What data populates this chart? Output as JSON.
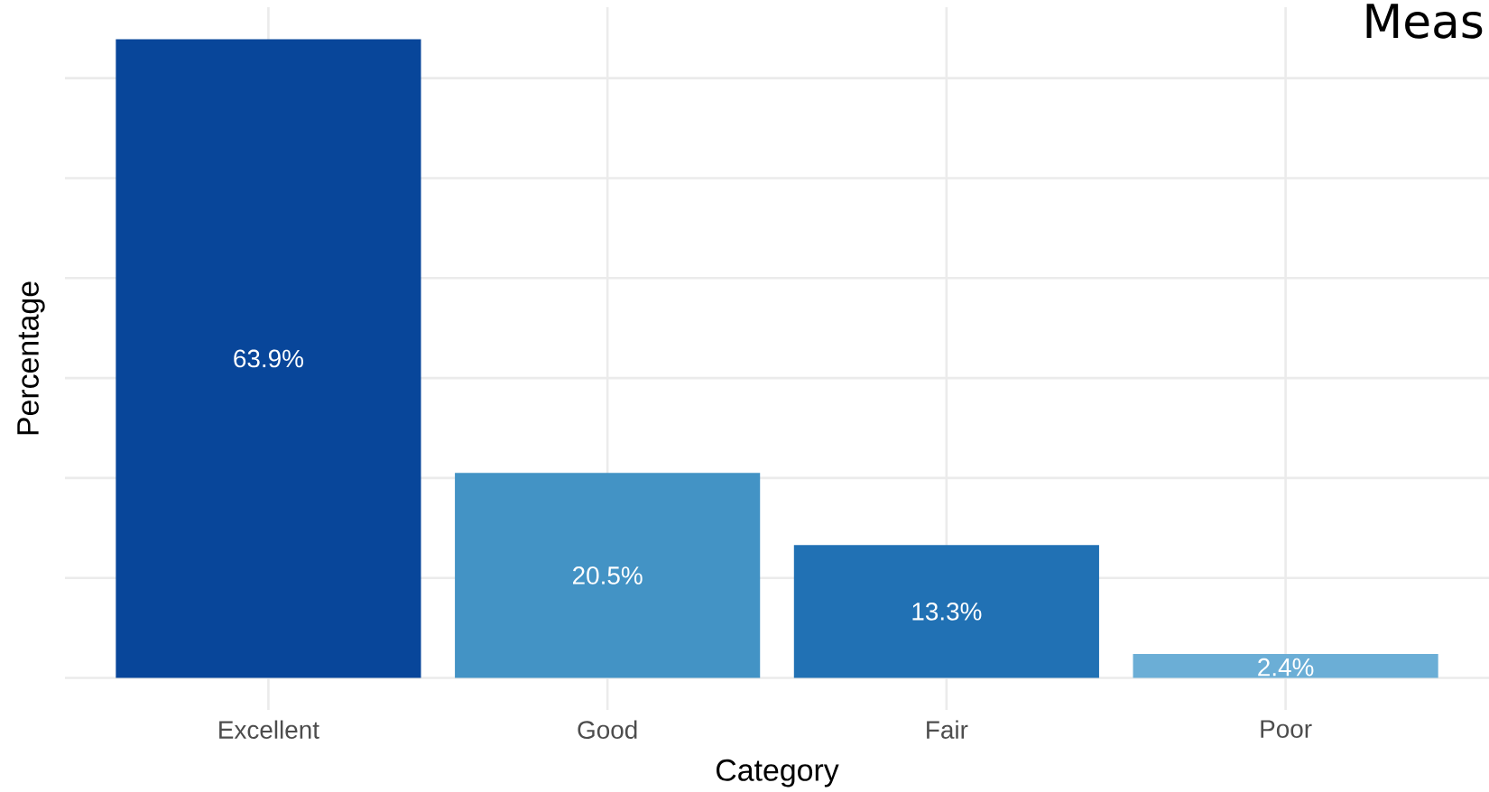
{
  "chart_data": {
    "type": "bar",
    "title": "Meas",
    "xlabel": "Category",
    "ylabel": "Percentage",
    "categories": [
      "Excellent",
      "Good",
      "Fair",
      "Poor"
    ],
    "values": [
      63.9,
      20.5,
      13.3,
      2.4
    ],
    "colors": [
      "#08469a",
      "#4393c5",
      "#2171b4",
      "#6baed6"
    ],
    "value_labels": [
      "63.9%",
      "20.5%",
      "13.3%",
      "2.4%"
    ],
    "ylim": [
      -3.2,
      67.1
    ],
    "yticks": [
      {
        "value": 0,
        "label": null
      },
      {
        "value": 10,
        "label": null
      },
      {
        "value": 20,
        "label": null
      },
      {
        "value": 30,
        "label": null
      },
      {
        "value": 40,
        "label": null
      },
      {
        "value": 50,
        "label": null
      },
      {
        "value": 60,
        "label": null
      }
    ],
    "tick_labels": "x",
    "grid": true
  }
}
